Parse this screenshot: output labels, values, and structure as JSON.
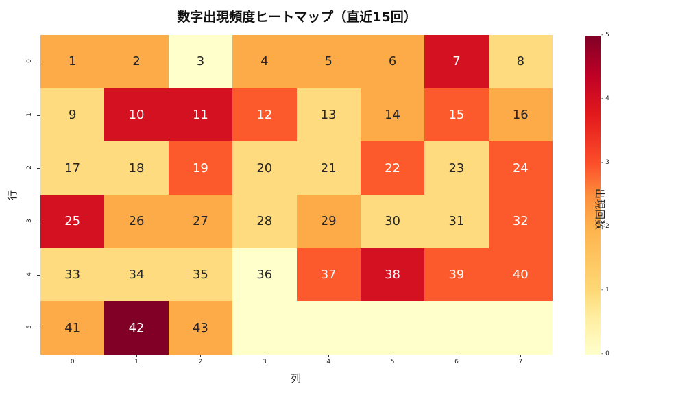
{
  "chart_data": {
    "type": "heatmap",
    "title": "数字出現頻度ヒートマップ（直近15回）",
    "xlabel": "列",
    "ylabel": "行",
    "x_ticks": [
      "0",
      "1",
      "2",
      "3",
      "4",
      "5",
      "6",
      "7"
    ],
    "y_ticks": [
      "0",
      "1",
      "2",
      "3",
      "4",
      "5"
    ],
    "colorbar": {
      "label": "出現回数",
      "range": [
        0,
        5
      ],
      "ticks": [
        "0",
        "1",
        "2",
        "3",
        "4",
        "5"
      ],
      "colormap": "YlOrRd"
    },
    "annotations": [
      [
        "1",
        "2",
        "3",
        "4",
        "5",
        "6",
        "7",
        "8"
      ],
      [
        "9",
        "10",
        "11",
        "12",
        "13",
        "14",
        "15",
        "16"
      ],
      [
        "17",
        "18",
        "19",
        "20",
        "21",
        "22",
        "23",
        "24"
      ],
      [
        "25",
        "26",
        "27",
        "28",
        "29",
        "30",
        "31",
        "32"
      ],
      [
        "33",
        "34",
        "35",
        "36",
        "37",
        "38",
        "39",
        "40"
      ],
      [
        "41",
        "42",
        "43",
        "",
        "",
        "",
        "",
        ""
      ]
    ],
    "values": [
      [
        2,
        2,
        0,
        2,
        2,
        2,
        4,
        1
      ],
      [
        1,
        4,
        4,
        3,
        1,
        2,
        3,
        2
      ],
      [
        1,
        1,
        3,
        1,
        1,
        3,
        1,
        3
      ],
      [
        4,
        2,
        2,
        1,
        2,
        1,
        1,
        3
      ],
      [
        1,
        1,
        1,
        0,
        3,
        4,
        3,
        3
      ],
      [
        2,
        5,
        2,
        0,
        0,
        0,
        0,
        0
      ]
    ],
    "color_scale": [
      "#ffffcc",
      "#fedb7e",
      "#fdaa48",
      "#fc5a2d",
      "#d31121",
      "#800026"
    ]
  }
}
